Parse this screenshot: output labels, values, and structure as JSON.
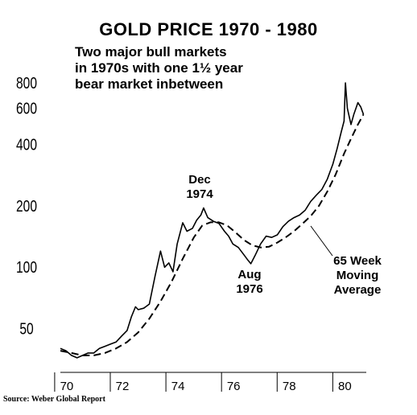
{
  "title": "GOLD PRICE 1970 - 1980",
  "subtitle_lines": [
    "Two major bull markets",
    "in 1970s with one 1½ year",
    "bear market inbetween"
  ],
  "source": "Source: Weber Global Report",
  "annotations": {
    "dec_1974": [
      "Dec",
      "1974"
    ],
    "aug_1976": [
      "Aug",
      "1976"
    ],
    "moving_average": [
      "65 Week",
      "Moving",
      "Average"
    ]
  },
  "colors": {
    "line": "#000000",
    "background": "#ffffff"
  },
  "chart_data": {
    "type": "line",
    "title": "GOLD PRICE 1970 - 1980",
    "y_scale": "log",
    "ylim": [
      35,
      900
    ],
    "xlim": [
      1969.8,
      1980.8
    ],
    "yticks": [
      50,
      100,
      200,
      400,
      600,
      800
    ],
    "ytick_labels": [
      "50",
      "100",
      "200",
      "400",
      "600",
      "800"
    ],
    "xtick_labels": [
      "70",
      "72",
      "74",
      "76",
      "78",
      "80"
    ],
    "xtick_label_years": [
      1970,
      1972,
      1974,
      1976,
      1978,
      1980
    ],
    "grid": false,
    "legend": "none",
    "series": [
      {
        "style": "solid",
        "points": [
          [
            1969.8,
            40
          ],
          [
            1970.0,
            39
          ],
          [
            1970.2,
            37
          ],
          [
            1970.4,
            36
          ],
          [
            1970.6,
            37
          ],
          [
            1970.8,
            38
          ],
          [
            1971.0,
            38
          ],
          [
            1971.2,
            40
          ],
          [
            1971.4,
            41
          ],
          [
            1971.6,
            42
          ],
          [
            1971.8,
            43
          ],
          [
            1972.0,
            46
          ],
          [
            1972.2,
            49
          ],
          [
            1972.35,
            57
          ],
          [
            1972.5,
            64
          ],
          [
            1972.6,
            62
          ],
          [
            1972.8,
            63
          ],
          [
            1973.0,
            66
          ],
          [
            1973.2,
            90
          ],
          [
            1973.4,
            120
          ],
          [
            1973.55,
            100
          ],
          [
            1973.7,
            105
          ],
          [
            1973.85,
            95
          ],
          [
            1974.0,
            130
          ],
          [
            1974.2,
            165
          ],
          [
            1974.35,
            150
          ],
          [
            1974.55,
            155
          ],
          [
            1974.7,
            170
          ],
          [
            1974.85,
            180
          ],
          [
            1974.95,
            195
          ],
          [
            1975.1,
            175
          ],
          [
            1975.3,
            168
          ],
          [
            1975.5,
            164
          ],
          [
            1975.7,
            150
          ],
          [
            1975.85,
            142
          ],
          [
            1976.0,
            130
          ],
          [
            1976.2,
            125
          ],
          [
            1976.4,
            115
          ],
          [
            1976.55,
            108
          ],
          [
            1976.65,
            104
          ],
          [
            1976.8,
            114
          ],
          [
            1977.0,
            130
          ],
          [
            1977.2,
            142
          ],
          [
            1977.4,
            140
          ],
          [
            1977.6,
            144
          ],
          [
            1977.8,
            158
          ],
          [
            1978.0,
            168
          ],
          [
            1978.2,
            175
          ],
          [
            1978.4,
            180
          ],
          [
            1978.6,
            190
          ],
          [
            1978.8,
            210
          ],
          [
            1979.0,
            225
          ],
          [
            1979.2,
            240
          ],
          [
            1979.4,
            270
          ],
          [
            1979.6,
            320
          ],
          [
            1979.75,
            380
          ],
          [
            1979.9,
            460
          ],
          [
            1980.0,
            520
          ],
          [
            1980.05,
            800
          ],
          [
            1980.12,
            600
          ],
          [
            1980.25,
            500
          ],
          [
            1980.35,
            560
          ],
          [
            1980.5,
            640
          ],
          [
            1980.6,
            610
          ],
          [
            1980.7,
            560
          ]
        ]
      },
      {
        "name": "65 Week Moving Average",
        "style": "dashed",
        "points": [
          [
            1969.8,
            39
          ],
          [
            1970.2,
            38
          ],
          [
            1970.6,
            37
          ],
          [
            1971.0,
            37
          ],
          [
            1971.4,
            38
          ],
          [
            1971.8,
            40
          ],
          [
            1972.2,
            43
          ],
          [
            1972.6,
            48
          ],
          [
            1973.0,
            56
          ],
          [
            1973.4,
            68
          ],
          [
            1973.8,
            85
          ],
          [
            1974.2,
            110
          ],
          [
            1974.6,
            140
          ],
          [
            1974.9,
            160
          ],
          [
            1975.2,
            166
          ],
          [
            1975.5,
            166
          ],
          [
            1975.8,
            160
          ],
          [
            1976.1,
            148
          ],
          [
            1976.4,
            136
          ],
          [
            1976.7,
            128
          ],
          [
            1977.0,
            125
          ],
          [
            1977.3,
            126
          ],
          [
            1977.6,
            132
          ],
          [
            1977.9,
            140
          ],
          [
            1978.2,
            150
          ],
          [
            1978.5,
            163
          ],
          [
            1978.8,
            178
          ],
          [
            1979.1,
            200
          ],
          [
            1979.4,
            235
          ],
          [
            1979.7,
            285
          ],
          [
            1980.0,
            360
          ],
          [
            1980.3,
            440
          ],
          [
            1980.5,
            500
          ],
          [
            1980.7,
            560
          ]
        ]
      }
    ]
  }
}
